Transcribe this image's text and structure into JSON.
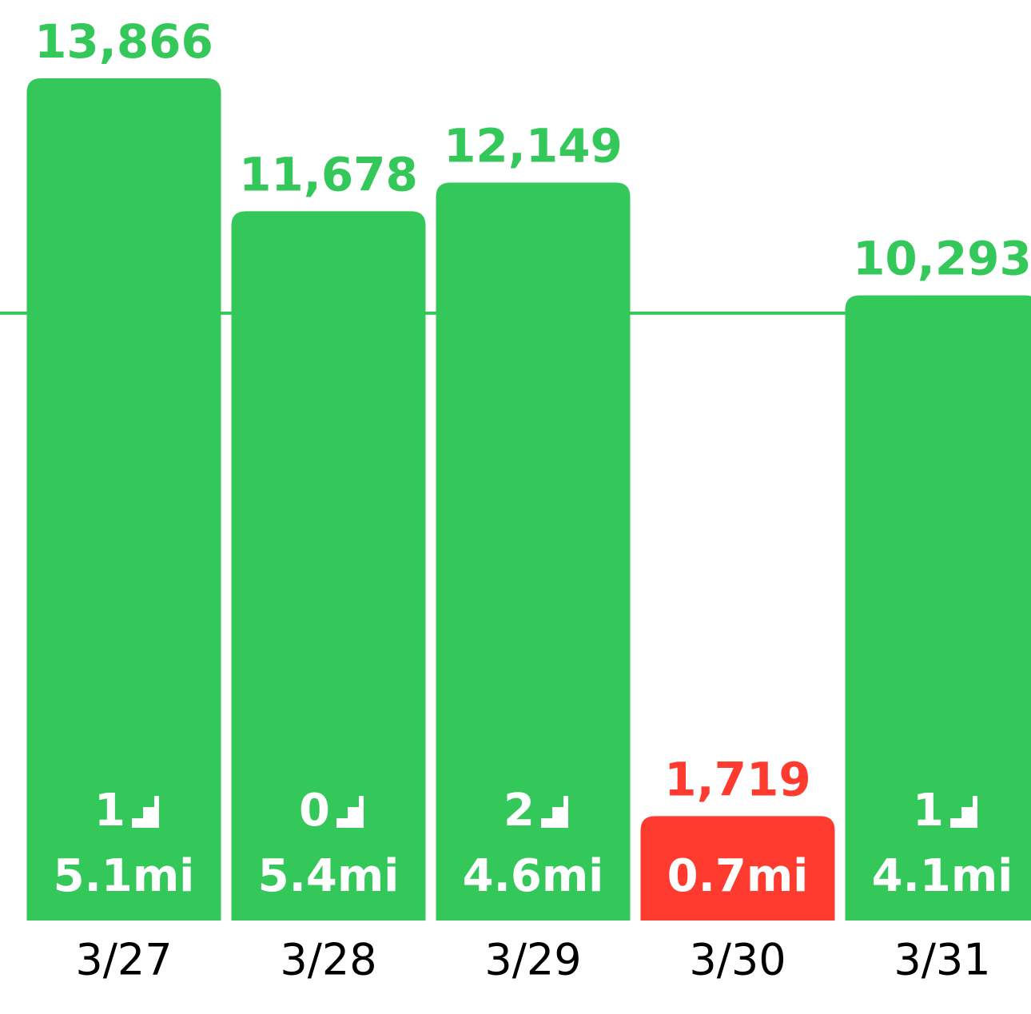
{
  "chart_data": {
    "type": "bar",
    "categories": [
      "3/27",
      "3/28",
      "3/29",
      "3/30",
      "3/31"
    ],
    "series": [
      {
        "values": [
          13866,
          11678,
          12149,
          1719,
          10293
        ],
        "value_labels": [
          "13,866",
          "11,678",
          "12,149",
          "1,719",
          "10,293"
        ],
        "colors": [
          "#34c759",
          "#34c759",
          "#34c759",
          "#ff3b30",
          "#34c759"
        ]
      }
    ],
    "floors": [
      1,
      0,
      2,
      null,
      1
    ],
    "distance": {
      "values": [
        5.1,
        5.4,
        4.6,
        0.7,
        4.1
      ],
      "value_labels": [
        "5.1mi",
        "5.4mi",
        "4.6mi",
        "0.7mi",
        "4.1mi"
      ]
    },
    "goal": 10000,
    "goal_color": "#34c759",
    "ylim": [
      0,
      13866
    ]
  }
}
